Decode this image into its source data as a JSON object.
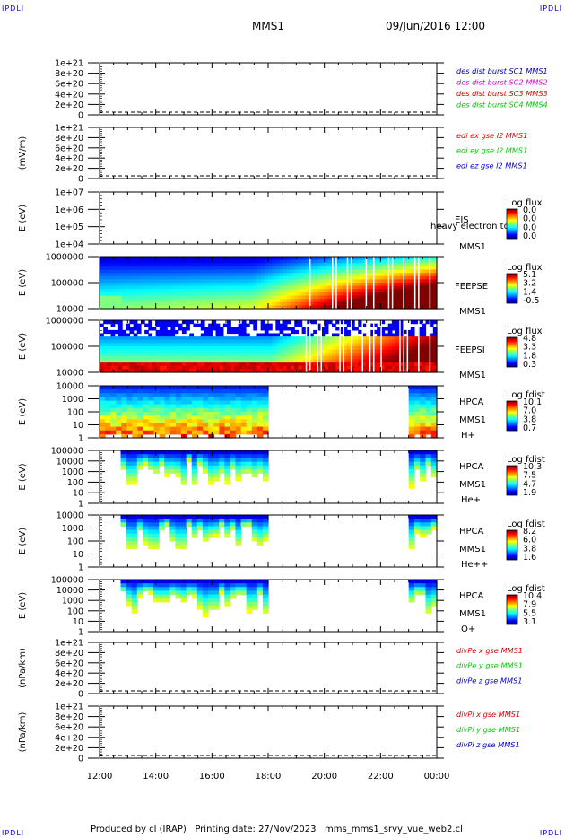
{
  "corner_marks": {
    "top_left": "IPDLI",
    "top_right": "IPDLI",
    "bottom_left": "IPDLI",
    "bottom_right": "IPDLI"
  },
  "header": {
    "mission": "MMS1",
    "date_time": "09/Jun/2016 12:00"
  },
  "footer": "Produced by cl (IRAP)   Printing date: 27/Nov/2023   mms_mms1_srvy_vue_web2.cl",
  "x_axis": {
    "ticks": [
      "12:00",
      "14:00",
      "16:00",
      "18:00",
      "20:00",
      "22:00",
      "00:00"
    ]
  },
  "colors": {
    "red": "#dd0000",
    "magenta": "#dd00dd",
    "green": "#00cc00",
    "blue": "#0000cc"
  },
  "chart_data": [
    {
      "type": "line",
      "id": "des",
      "ylabel": "",
      "yticks": [
        "1e+21",
        "8e+20",
        "6e+20",
        "4e+20",
        "2e+20",
        "0"
      ],
      "ylim": [
        0,
        1e+21
      ],
      "series": [
        {
          "name": "des dist burst SC1 MMS1",
          "color": "#0000cc",
          "values": [
            0,
            0
          ]
        },
        {
          "name": "des dist burst SC2 MMS2",
          "color": "#dd00dd",
          "values": [
            0,
            0
          ]
        },
        {
          "name": "des dist burst SC3 MMS3",
          "color": "#dd0000",
          "values": [
            0,
            0
          ]
        },
        {
          "name": "des dist burst SC4 MMS4",
          "color": "#00cc00",
          "values": [
            0,
            0
          ]
        }
      ]
    },
    {
      "type": "line",
      "id": "edi",
      "ylabel": "(mV/m)",
      "yticks": [
        "1e+21",
        "8e+20",
        "6e+20",
        "4e+20",
        "2e+20",
        "0"
      ],
      "ylim": [
        0,
        1e+21
      ],
      "series": [
        {
          "name": "edi ex gse l2 MMS1",
          "color": "#dd0000",
          "values": [
            0,
            0
          ]
        },
        {
          "name": "edi ey gse l2 MMS1",
          "color": "#00cc00",
          "values": [
            0,
            0
          ]
        },
        {
          "name": "edi ez gse l2 MMS1",
          "color": "#0000cc",
          "values": [
            0,
            0
          ]
        }
      ]
    },
    {
      "type": "heatmap",
      "id": "eis",
      "ylabel": "E (eV)",
      "log_y": true,
      "yticks": [
        "1e+07",
        "1e+06",
        "1e+05",
        "1e+04"
      ],
      "labels": [
        "EIS",
        "MMS1"
      ],
      "overflow_label": "heavy electron to",
      "colorbar": {
        "title": "Log flux",
        "ticks": [
          "0.0",
          "0.0",
          "0.0",
          "0.0"
        ]
      },
      "fill": {
        "visible": false
      }
    },
    {
      "type": "heatmap",
      "id": "feepse",
      "ylabel": "E (eV)",
      "log_y": true,
      "yticks": [
        "1000000",
        "100000",
        "10000"
      ],
      "labels": [
        "FEEPSE",
        "MMS1"
      ],
      "colorbar": {
        "title": "Log flux",
        "ticks": [
          "5.1",
          "3.2",
          "1.4",
          "-0.5"
        ]
      },
      "fill": {
        "visible": true,
        "x_start": "12:00",
        "x_end": "00:00"
      }
    },
    {
      "type": "heatmap",
      "id": "feepsi",
      "ylabel": "E (eV)",
      "log_y": true,
      "yticks": [
        "1000000",
        "100000",
        "10000"
      ],
      "labels": [
        "FEEPSI",
        "MMS1"
      ],
      "colorbar": {
        "title": "Log flux",
        "ticks": [
          "4.8",
          "3.3",
          "1.8",
          "0.3"
        ]
      },
      "fill": {
        "visible": true,
        "x_start": "12:00",
        "x_end": "00:00"
      }
    },
    {
      "type": "heatmap",
      "id": "hpca_h",
      "ylabel": "E (eV)",
      "log_y": true,
      "yticks": [
        "10000",
        "1000",
        "100",
        "10",
        "1"
      ],
      "labels": [
        "HPCA",
        "MMS1"
      ],
      "species": "H+",
      "colorbar": {
        "title": "Log fdist",
        "ticks": [
          "10.1",
          "7.0",
          "3.8",
          "0.7"
        ]
      },
      "fill": {
        "visible": true,
        "segments": [
          [
            "12:00",
            "18:00"
          ],
          [
            "23:00",
            "00:00"
          ]
        ]
      }
    },
    {
      "type": "heatmap",
      "id": "hpca_he",
      "ylabel": "E (eV)",
      "log_y": true,
      "yticks": [
        "100000",
        "10000",
        "1000",
        "100",
        "10",
        "1"
      ],
      "labels": [
        "HPCA",
        "MMS1"
      ],
      "species": "He+",
      "colorbar": {
        "title": "Log fdist",
        "ticks": [
          "10.3",
          "7.5",
          "4.7",
          "1.9"
        ]
      },
      "fill": {
        "visible": true,
        "segments": [
          [
            "12:45",
            "18:00"
          ],
          [
            "23:00",
            "00:00"
          ]
        ]
      }
    },
    {
      "type": "heatmap",
      "id": "hpca_he2",
      "ylabel": "E (eV)",
      "log_y": true,
      "yticks": [
        "10000",
        "1000",
        "100",
        "10",
        "1"
      ],
      "labels": [
        "HPCA",
        "MMS1"
      ],
      "species": "He++",
      "colorbar": {
        "title": "Log fdist",
        "ticks": [
          "8.2",
          "6.0",
          "3.8",
          "1.6"
        ]
      },
      "fill": {
        "visible": true,
        "segments": [
          [
            "12:45",
            "18:00"
          ],
          [
            "23:00",
            "00:00"
          ]
        ]
      }
    },
    {
      "type": "heatmap",
      "id": "hpca_o",
      "ylabel": "E (eV)",
      "log_y": true,
      "yticks": [
        "100000",
        "10000",
        "1000",
        "100",
        "10",
        "1"
      ],
      "labels": [
        "HPCA",
        "MMS1"
      ],
      "species": "O+",
      "colorbar": {
        "title": "Log fdist",
        "ticks": [
          "10.4",
          "7.9",
          "5.5",
          "3.1"
        ]
      },
      "fill": {
        "visible": true,
        "segments": [
          [
            "12:45",
            "18:00"
          ],
          [
            "23:00",
            "00:00"
          ]
        ]
      }
    },
    {
      "type": "line",
      "id": "divpe",
      "ylabel": "(nPa/km)",
      "yticks": [
        "1e+21",
        "8e+20",
        "6e+20",
        "4e+20",
        "2e+20",
        "0"
      ],
      "ylim": [
        0,
        1e+21
      ],
      "series": [
        {
          "name": "divPe x gse MMS1",
          "color": "#dd0000",
          "values": [
            0,
            0
          ]
        },
        {
          "name": "divPe y gse MMS1",
          "color": "#00cc00",
          "values": [
            0,
            0
          ]
        },
        {
          "name": "divPe z gse MMS1",
          "color": "#0000cc",
          "values": [
            0,
            0
          ]
        }
      ]
    },
    {
      "type": "line",
      "id": "divpi",
      "ylabel": "(nPa/km)",
      "yticks": [
        "1e+21",
        "8e+20",
        "6e+20",
        "4e+20",
        "2e+20",
        "0"
      ],
      "ylim": [
        0,
        1e+21
      ],
      "series": [
        {
          "name": "divPi x gse MMS1",
          "color": "#dd0000",
          "values": [
            0,
            0
          ]
        },
        {
          "name": "divPi y gse MMS1",
          "color": "#00cc00",
          "values": [
            0,
            0
          ]
        },
        {
          "name": "divPi z gse MMS1",
          "color": "#0000cc",
          "values": [
            0,
            0
          ]
        }
      ]
    }
  ]
}
